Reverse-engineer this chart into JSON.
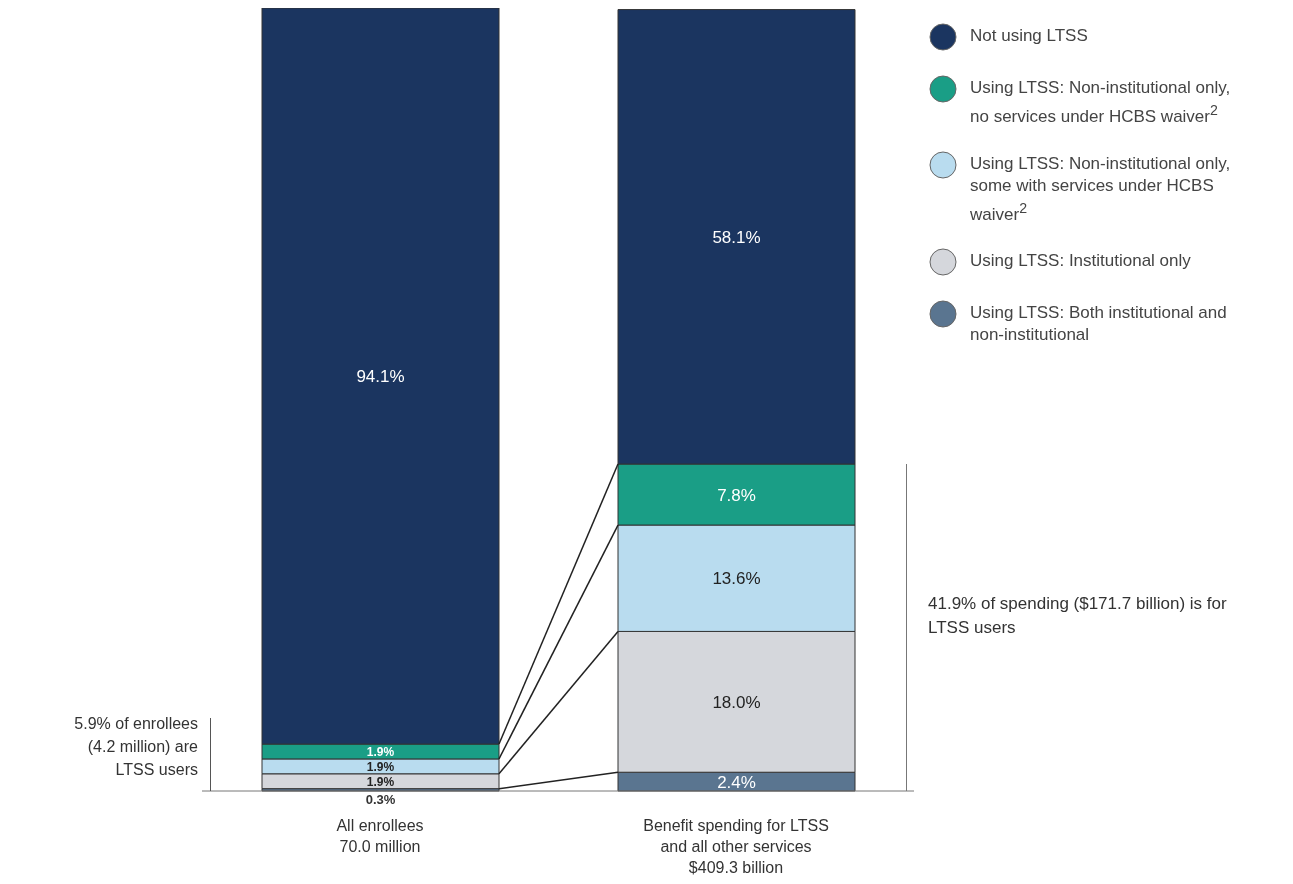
{
  "chart_data": {
    "type": "bar",
    "stacked": true,
    "categories": [
      "All enrollees\n70.0 million",
      "Benefit spending for LTSS\nand all other services\n$409.3 billion"
    ],
    "series": [
      {
        "name": "Using LTSS: Both institutional and non-institutional",
        "color": "#5a7590",
        "values": [
          0.3,
          2.4
        ],
        "value_labels": [
          "0.3%",
          "2.4%"
        ]
      },
      {
        "name": "Using LTSS: Institutional only",
        "color": "#d5d7dc",
        "values": [
          1.9,
          18.0
        ],
        "value_labels": [
          "1.9%",
          "18.0%"
        ]
      },
      {
        "name": "Using LTSS: Non-institutional only, some with services under HCBS waiver$^{2}$",
        "color": "#b9dcef",
        "values": [
          1.9,
          13.6
        ],
        "value_labels": [
          "1.9%",
          "13.6%"
        ]
      },
      {
        "name": "Using LTSS: Non-institutional only, no services under HCBS waiver$^{2}$",
        "color": "#1a9e86",
        "values": [
          1.9,
          7.8
        ],
        "value_labels": [
          "1.9%",
          "7.8%"
        ]
      },
      {
        "name": "Not using LTSS",
        "color": "#1b3560",
        "values": [
          94.1,
          58.1
        ],
        "value_labels": [
          "94.1%",
          "58.1%"
        ]
      }
    ],
    "annotations": [
      "5.9% of enrollees (4.2 million) are LTSS users",
      "41.9% of spending ($171.7 billion) is for LTSS users"
    ],
    "legend": "right",
    "tick_labels": "x",
    "grid": false
  }
}
